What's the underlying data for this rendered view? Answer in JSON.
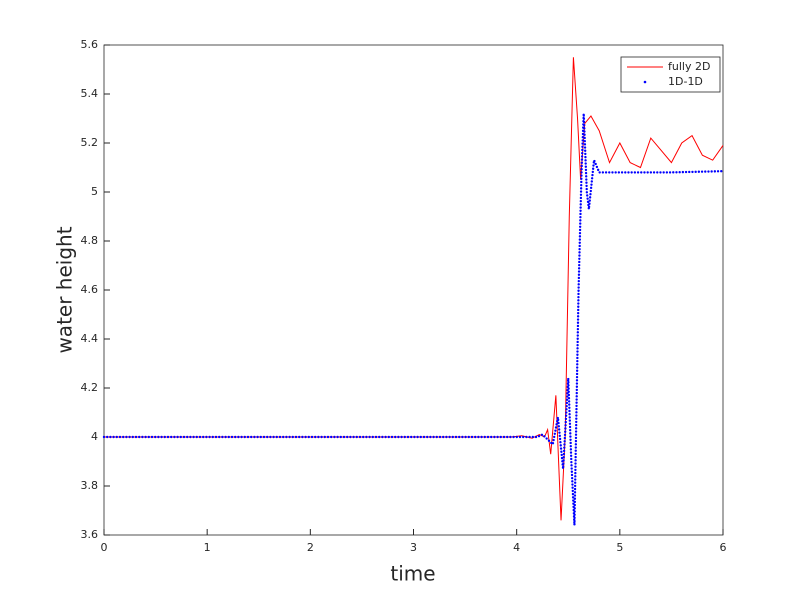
{
  "chart_data": {
    "type": "line",
    "xlabel": "time",
    "ylabel": "water height",
    "xlim": [
      0,
      6
    ],
    "xticks": [
      0,
      1,
      2,
      3,
      4,
      5,
      6
    ],
    "ylim": [
      3.6,
      5.6
    ],
    "yticks": [
      3.6,
      3.8,
      4,
      4.2,
      4.4,
      4.6,
      4.8,
      5,
      5.2,
      5.4,
      5.6
    ],
    "legend": "top-right",
    "series": [
      {
        "name": "fully 2D",
        "color": "#ff0000",
        "style": "line",
        "x": [
          0,
          3.8,
          3.95,
          4.05,
          4.15,
          4.22,
          4.27,
          4.3,
          4.33,
          4.38,
          4.43,
          4.47,
          4.51,
          4.55,
          4.59,
          4.62,
          4.66,
          4.72,
          4.8,
          4.9,
          5.0,
          5.1,
          5.2,
          5.3,
          5.4,
          5.5,
          5.6,
          5.7,
          5.8,
          5.9,
          6.0
        ],
        "values": [
          4,
          4,
          4.0,
          4.005,
          3.995,
          4.01,
          4.0,
          4.03,
          3.93,
          4.17,
          3.66,
          4.0,
          4.9,
          5.55,
          5.3,
          5.05,
          5.28,
          5.31,
          5.25,
          5.12,
          5.2,
          5.12,
          5.1,
          5.22,
          5.17,
          5.12,
          5.2,
          5.23,
          5.15,
          5.13,
          5.19
        ]
      },
      {
        "name": "1D-1D",
        "color": "#0000ff",
        "style": "dots",
        "x": [
          0,
          1,
          2,
          3,
          4,
          4.2,
          4.25,
          4.3,
          4.35,
          4.4,
          4.45,
          4.5,
          4.53,
          4.56,
          4.6,
          4.63,
          4.65,
          4.68,
          4.7,
          4.75,
          4.8,
          4.9,
          5.0,
          5.5,
          6.0
        ],
        "values": [
          4,
          4,
          4,
          4,
          4,
          4.0,
          4.01,
          3.99,
          3.97,
          4.08,
          3.87,
          4.24,
          3.9,
          3.64,
          4.6,
          5.1,
          5.32,
          5.0,
          4.93,
          5.13,
          5.08,
          5.08,
          5.08,
          5.08,
          5.085
        ]
      }
    ]
  }
}
